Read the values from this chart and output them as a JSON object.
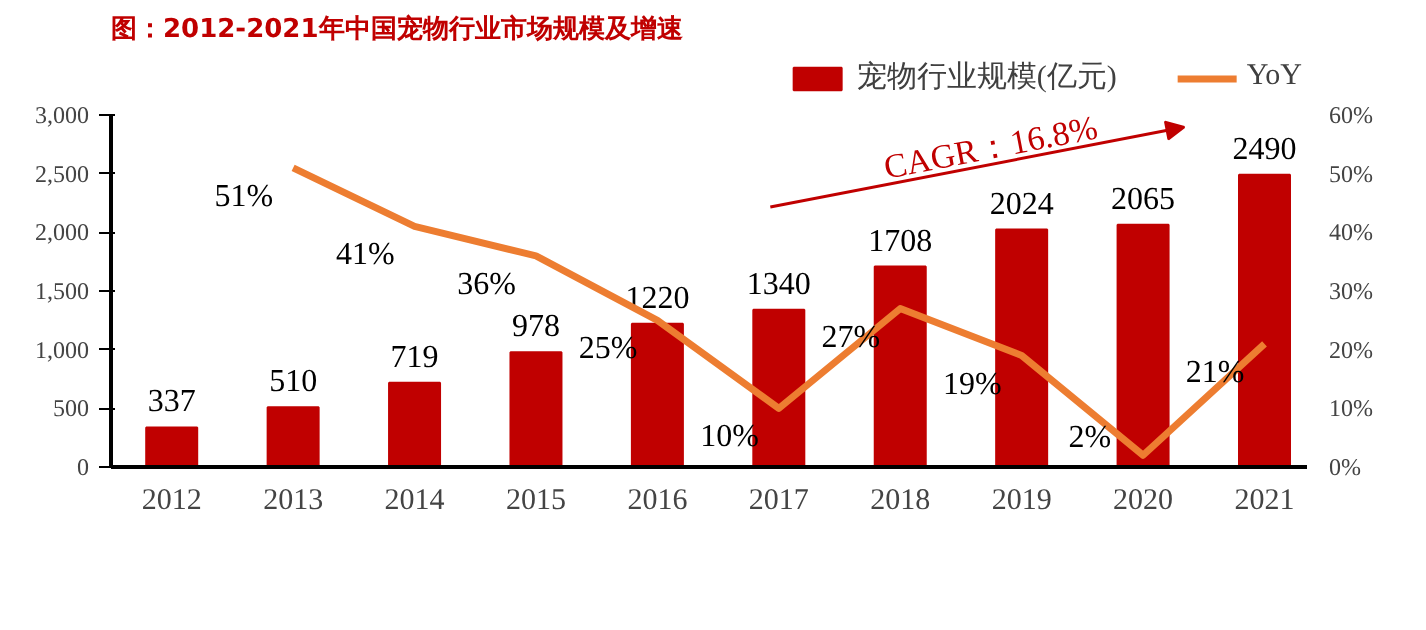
{
  "chart_data": {
    "type": "bar",
    "title": "图：2012-2021年中国宠物行业市场规模及增速",
    "categories": [
      "2012",
      "2013",
      "2014",
      "2015",
      "2016",
      "2017",
      "2018",
      "2019",
      "2020",
      "2021"
    ],
    "series": [
      {
        "name": "宠物行业规模(亿元)",
        "color": "#c00000",
        "values": [
          337,
          510,
          719,
          978,
          1220,
          1340,
          1708,
          2024,
          2065,
          2490
        ]
      },
      {
        "name": "YoY",
        "type": "line",
        "axis": "y2",
        "color": "#ed7d31",
        "values": [
          null,
          51,
          41,
          36,
          25,
          10,
          27,
          19,
          2,
          21
        ],
        "value_labels": [
          null,
          "51%",
          "41%",
          "36%",
          "25%",
          "10%",
          "27%",
          "19%",
          "2%",
          "21%"
        ]
      }
    ],
    "data_labels": true,
    "ylim": [
      0,
      3000
    ],
    "yticks": [
      {
        "value": 0,
        "label": "0"
      },
      {
        "value": 500,
        "label": "500"
      },
      {
        "value": 1000,
        "label": "1,000"
      },
      {
        "value": 1500,
        "label": "1,500"
      },
      {
        "value": 2000,
        "label": "2,000"
      },
      {
        "value": 2500,
        "label": "2,500"
      },
      {
        "value": 3000,
        "label": "3,000"
      }
    ],
    "y2lim": [
      0,
      60
    ],
    "y2ticks": [
      {
        "value": 0,
        "label": "0%"
      },
      {
        "value": 10,
        "label": "10%"
      },
      {
        "value": 20,
        "label": "20%"
      },
      {
        "value": 30,
        "label": "30%"
      },
      {
        "value": 40,
        "label": "40%"
      },
      {
        "value": 50,
        "label": "50%"
      },
      {
        "value": 60,
        "label": "60%"
      }
    ],
    "annotations": [
      "CAGR：16.8%"
    ],
    "legend": "top right",
    "grid": false
  }
}
